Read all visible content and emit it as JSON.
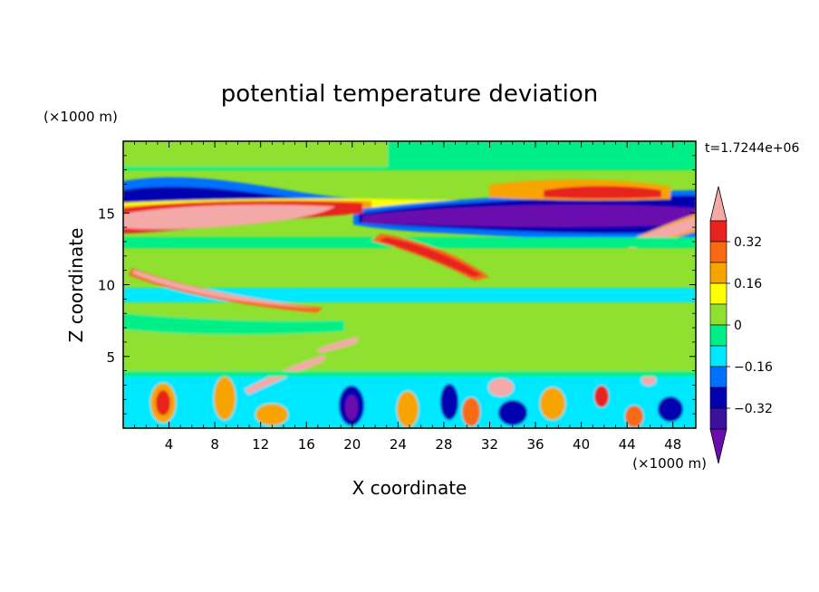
{
  "chart_data": {
    "type": "heatmap",
    "title": "potential temperature deviation",
    "xlabel": "X coordinate",
    "ylabel": "Z coordinate",
    "x_units": "(×1000 m)",
    "y_units": "(×1000 m)",
    "time_label": "t=1.7244e+06",
    "xlim": [
      0,
      50
    ],
    "ylim": [
      0,
      20
    ],
    "x_ticks": [
      4,
      8,
      12,
      16,
      20,
      24,
      28,
      32,
      36,
      40,
      44,
      48
    ],
    "y_ticks": [
      5,
      10,
      15
    ],
    "colorbar": {
      "levels": [
        -0.4,
        -0.32,
        -0.24,
        -0.16,
        -0.08,
        0,
        0.08,
        0.16,
        0.24,
        0.32,
        0.4
      ],
      "tick_labels": [
        "0.32",
        "0.16",
        "0",
        "−0.16",
        "−0.32"
      ],
      "tick_values": [
        0.32,
        0.16,
        0,
        -0.16,
        -0.32
      ],
      "colors_high_to_low": [
        "#f4a9a9",
        "#e8221c",
        "#f66b12",
        "#f8a400",
        "#ffff00",
        "#90e030",
        "#00ee88",
        "#00e8ff",
        "#0070ff",
        "#0000b0",
        "#3b109a",
        "#6a0cae"
      ]
    },
    "features": [
      {
        "value": 0.4,
        "x": [
          0,
          13
        ],
        "z": [
          13.6,
          15.6
        ],
        "note": "pink band upper left"
      },
      {
        "value": -0.4,
        "x": [
          22,
          48
        ],
        "z": [
          13.6,
          15.6
        ],
        "note": "purple band upper right"
      },
      {
        "value": 0.4,
        "x": [
          1,
          17
        ],
        "z": [
          8.5,
          11
        ],
        "note": "pink tilted band"
      },
      {
        "value": 0.32,
        "x": [
          20,
          33
        ],
        "z": [
          10,
          13.5
        ],
        "note": "red tilted band"
      },
      {
        "value": 0.32,
        "x": [
          37,
          45
        ],
        "z": [
          15.8,
          16.6
        ],
        "note": "red upper right"
      },
      {
        "value": -0.32,
        "x": [
          0,
          20
        ],
        "z": [
          16,
          17.5
        ],
        "note": "dark blue upper left"
      },
      {
        "value": 0.4,
        "x": [
          44,
          50
        ],
        "z": [
          12.5,
          15
        ],
        "note": "pink upper right"
      }
    ]
  }
}
